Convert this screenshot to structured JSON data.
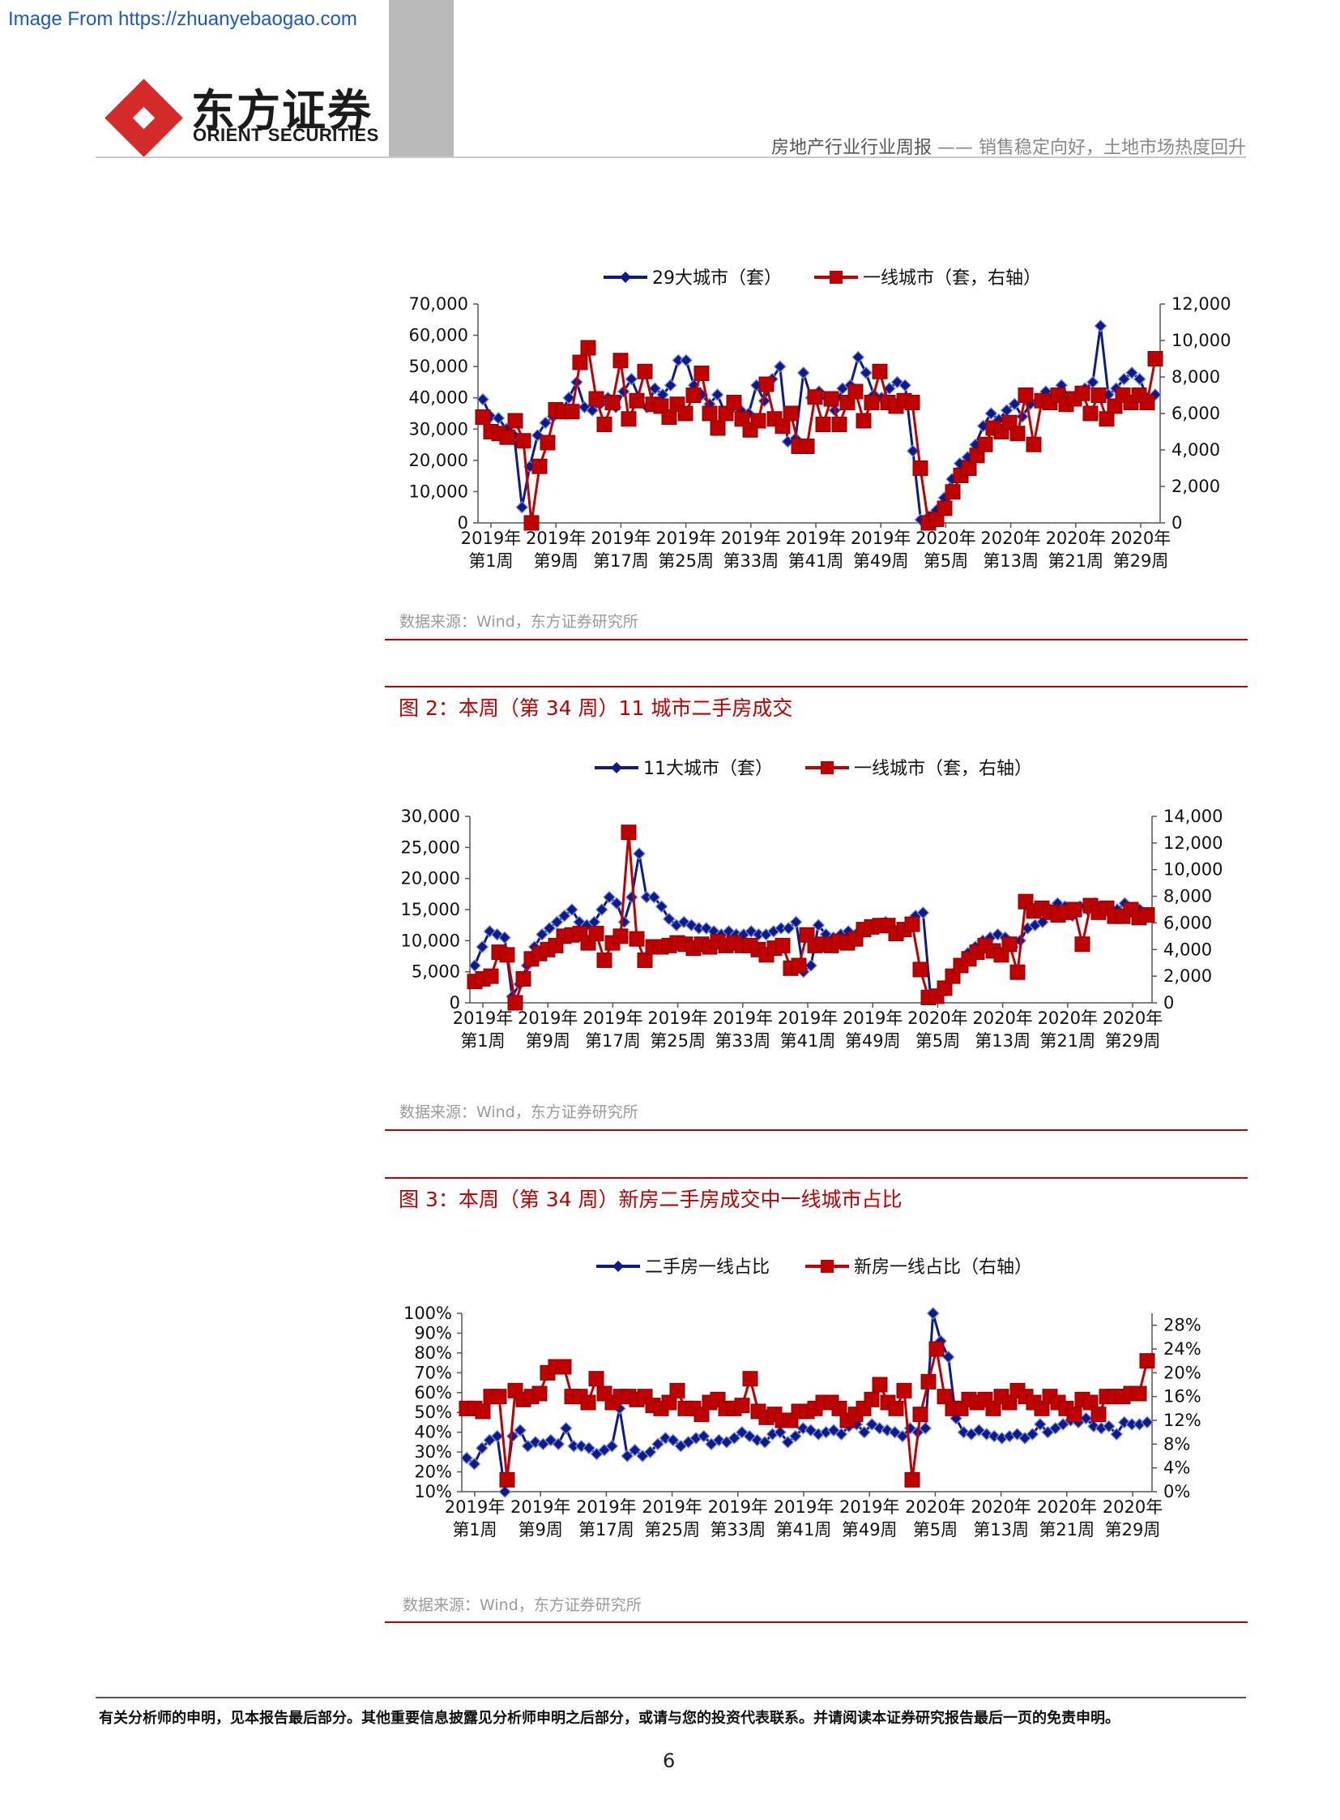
{
  "watermark": "Image From https://zhuanyebaogao.com",
  "header": {
    "logo_cn": "东方证券",
    "logo_en": "ORIENT SECURITIES",
    "report_type": "房地产行业行业周报",
    "separator": "——",
    "report_title": "销售稳定向好，土地市场热度回升"
  },
  "footer": {
    "disclaimer": "有关分析师的申明，见本报告最后部分。其他重要信息披露见分析师申明之后部分，或请与您的投资代表联系。并请阅读本证券研究报告最后一页的免责申明。",
    "page": "6"
  },
  "colors": {
    "navy": "#0d1b8a",
    "red": "#c00000",
    "accent": "#c00000"
  },
  "x_ticks": [
    [
      "2019年",
      "第1周"
    ],
    [
      "2019年",
      "第9周"
    ],
    [
      "2019年",
      "第17周"
    ],
    [
      "2019年",
      "第25周"
    ],
    [
      "2019年",
      "第33周"
    ],
    [
      "2019年",
      "第41周"
    ],
    [
      "2019年",
      "第49周"
    ],
    [
      "2020年",
      "第5周"
    ],
    [
      "2020年",
      "第13周"
    ],
    [
      "2020年",
      "第21周"
    ],
    [
      "2020年",
      "第29周"
    ]
  ],
  "chart_data": [
    {
      "type": "line",
      "title": "",
      "source": "数据来源：Wind，东方证券研究所",
      "left_axis": {
        "ylim": [
          0,
          70000
        ],
        "ticks": [
          "0",
          "10,000",
          "20,000",
          "30,000",
          "40,000",
          "50,000",
          "60,000",
          "70,000"
        ]
      },
      "right_axis": {
        "ylim": [
          0,
          12000
        ],
        "ticks": [
          "0",
          "2,000",
          "4,000",
          "6,000",
          "8,000",
          "10,000",
          "12,000"
        ]
      },
      "legend_position": "top",
      "series": [
        {
          "name": "29大城市（套）",
          "axis": "left",
          "color": "#0d1b8a",
          "marker": "diamond",
          "values": [
            39500,
            34000,
            33500,
            30000,
            28000,
            5000,
            18000,
            28000,
            32000,
            34000,
            35000,
            40000,
            45000,
            37000,
            36000,
            38000,
            40000,
            37000,
            42000,
            46000,
            40000,
            37000,
            43000,
            41000,
            44000,
            52000,
            52000,
            44000,
            41000,
            38000,
            41000,
            35000,
            37000,
            36000,
            35000,
            44000,
            39000,
            46000,
            50000,
            26000,
            27000,
            48000,
            40000,
            42000,
            40000,
            36000,
            43000,
            44000,
            53000,
            48000,
            41000,
            40000,
            43000,
            45000,
            44000,
            23000,
            1000,
            2000,
            4000,
            8000,
            14000,
            19000,
            21000,
            25000,
            31000,
            35000,
            33000,
            36000,
            38000,
            34000,
            38000,
            39000,
            42000,
            41000,
            44000,
            40000,
            41000,
            43000,
            45000,
            63000,
            41000,
            43000,
            46000,
            48000,
            46000,
            40000,
            41000
          ]
        },
        {
          "name": "一线城市（套，右轴）",
          "axis": "right",
          "color": "#c00000",
          "marker": "square",
          "values": [
            5800,
            5000,
            4900,
            4700,
            5600,
            4500,
            0,
            3100,
            4400,
            6200,
            6100,
            6100,
            8800,
            9600,
            6800,
            5400,
            6600,
            8900,
            5700,
            6700,
            8300,
            6500,
            6400,
            5800,
            6500,
            6000,
            7000,
            8200,
            6000,
            5200,
            6000,
            6600,
            5700,
            5100,
            5600,
            7600,
            5700,
            5300,
            6000,
            4200,
            4200,
            6900,
            5400,
            6800,
            5400,
            6600,
            7200,
            5600,
            6600,
            8300,
            6600,
            6400,
            6700,
            6600,
            3000,
            0,
            200,
            800,
            1700,
            2600,
            3000,
            3700,
            4300,
            5200,
            5000,
            5500,
            4900,
            7000,
            4300,
            6700,
            6600,
            7000,
            6500,
            6800,
            7100,
            6000,
            7000,
            5700,
            6400,
            7000,
            6600,
            7000,
            6600,
            9000
          ]
        }
      ]
    },
    {
      "type": "line",
      "title": "图 2：本周（第 34 周）11 城市二手房成交",
      "source": "数据来源：Wind，东方证券研究所",
      "left_axis": {
        "ylim": [
          0,
          30000
        ],
        "ticks": [
          "0",
          "5,000",
          "10,000",
          "15,000",
          "20,000",
          "25,000",
          "30,000"
        ]
      },
      "right_axis": {
        "ylim": [
          0,
          14000
        ],
        "ticks": [
          "0",
          "2,000",
          "4,000",
          "6,000",
          "8,000",
          "10,000",
          "12,000",
          "14,000"
        ]
      },
      "legend_position": "top",
      "series": [
        {
          "name": "11大城市（套）",
          "axis": "left",
          "color": "#0d1b8a",
          "marker": "diamond",
          "values": [
            6000,
            9000,
            11500,
            11000,
            10500,
            1000,
            3000,
            6000,
            9000,
            11000,
            12000,
            13000,
            14000,
            15000,
            13000,
            12500,
            13000,
            15000,
            17000,
            16000,
            13000,
            17000,
            24000,
            17000,
            17000,
            15500,
            13500,
            12500,
            13000,
            12500,
            12000,
            12000,
            11500,
            11000,
            11500,
            11000,
            11000,
            11500,
            11000,
            11000,
            11500,
            12000,
            12000,
            13000,
            5000,
            6000,
            12500,
            11000,
            10500,
            11000,
            11500,
            11000,
            11500,
            12000,
            12500,
            13000,
            12000,
            12000,
            12500,
            14000,
            14500,
            1000,
            1500,
            2000,
            4000,
            6000,
            8000,
            9000,
            10000,
            10500,
            11000,
            10500,
            9000,
            10000,
            12000,
            12500,
            13000,
            15000,
            16000,
            15500,
            14000,
            15500,
            15000,
            16000,
            15000,
            14500,
            15000,
            16000,
            15000,
            15000,
            14000
          ]
        },
        {
          "name": "一线城市（套，右轴）",
          "axis": "right",
          "color": "#c00000",
          "marker": "square",
          "values": [
            1600,
            1800,
            2000,
            3800,
            3600,
            0,
            1800,
            3300,
            3700,
            4000,
            4300,
            5000,
            5100,
            5200,
            4500,
            5200,
            3200,
            4500,
            5000,
            12800,
            4800,
            3200,
            4200,
            4200,
            4300,
            4500,
            4400,
            4100,
            4400,
            4200,
            4600,
            4300,
            4500,
            4300,
            4300,
            4000,
            3600,
            4100,
            4300,
            2600,
            2800,
            5100,
            4300,
            4400,
            4300,
            4600,
            4500,
            4800,
            5500,
            5700,
            5800,
            5800,
            5200,
            5500,
            5900,
            2500,
            400,
            500,
            1100,
            2000,
            2800,
            3300,
            3800,
            4300,
            3900,
            3600,
            4400,
            2300,
            7600,
            6900,
            7100,
            6800,
            6600,
            6800,
            7000,
            4400,
            7300,
            6800,
            7100,
            6500,
            6500,
            7000,
            6400,
            6600
          ]
        }
      ]
    },
    {
      "type": "line",
      "title": "图 3：本周（第 34 周）新房二手房成交中一线城市占比",
      "source": "数据来源：Wind，东方证券研究所",
      "left_axis": {
        "ylim": [
          10,
          100
        ],
        "ticks": [
          "10%",
          "20%",
          "30%",
          "40%",
          "50%",
          "60%",
          "70%",
          "80%",
          "90%",
          "100%"
        ]
      },
      "right_axis": {
        "ylim": [
          0,
          30
        ],
        "ticks": [
          "0%",
          "4%",
          "8%",
          "12%",
          "16%",
          "20%",
          "24%",
          "28%"
        ]
      },
      "legend_position": "top",
      "series": [
        {
          "name": "二手房一线占比",
          "axis": "left",
          "color": "#0d1b8a",
          "marker": "diamond",
          "values": [
            27,
            24,
            32,
            36,
            38,
            10,
            38,
            41,
            33,
            35,
            34,
            36,
            34,
            42,
            33,
            33,
            32,
            29,
            31,
            33,
            52,
            28,
            31,
            28,
            30,
            34,
            37,
            36,
            33,
            35,
            37,
            38,
            34,
            36,
            35,
            37,
            40,
            38,
            36,
            35,
            39,
            40,
            35,
            38,
            42,
            41,
            39,
            40,
            41,
            39,
            43,
            44,
            40,
            44,
            42,
            41,
            40,
            38,
            42,
            40,
            42,
            100,
            86,
            78,
            47,
            40,
            39,
            41,
            39,
            38,
            37,
            38,
            39,
            37,
            39,
            44,
            40,
            42,
            44,
            46,
            45,
            47,
            43,
            42,
            43,
            39,
            45,
            44,
            44,
            45
          ]
        },
        {
          "name": "新房一线占比（右轴）",
          "axis": "right",
          "color": "#c00000",
          "marker": "square",
          "values": [
            14,
            14,
            13.5,
            16,
            16,
            2,
            17,
            15.5,
            16,
            16.5,
            20,
            21,
            21,
            16,
            16,
            15,
            19,
            16.5,
            15,
            16,
            16,
            15.5,
            16,
            14.5,
            14,
            15,
            17,
            14,
            14,
            13,
            15,
            15.5,
            14,
            14,
            14.5,
            19,
            13.5,
            12.5,
            13,
            12,
            12,
            13.5,
            13.5,
            14,
            15,
            15,
            14,
            12,
            13,
            14,
            15.5,
            18,
            15,
            14,
            17,
            2,
            13,
            18.5,
            24,
            16,
            14,
            14,
            15.5,
            15,
            15.5,
            14,
            16,
            15,
            17,
            16,
            15,
            14,
            16,
            15,
            14,
            13,
            15.5,
            15,
            13,
            16,
            16,
            16,
            16.5,
            16.5,
            22
          ]
        }
      ]
    }
  ]
}
